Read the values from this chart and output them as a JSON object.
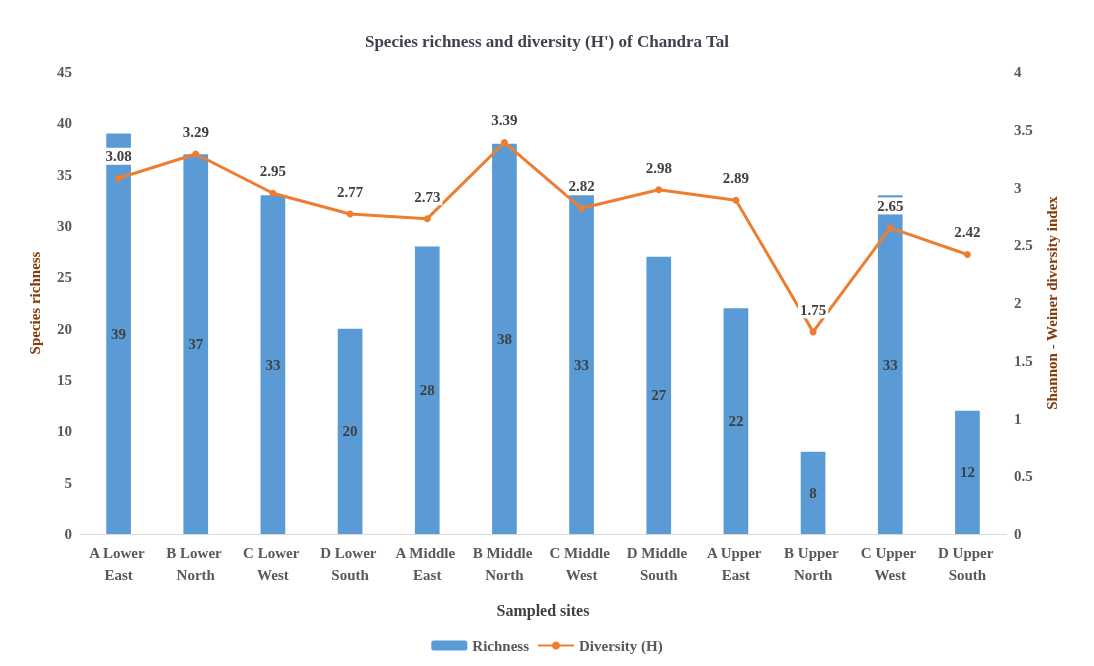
{
  "chart_data": {
    "type": "bar",
    "title": "Species richness and diversity (H') of Chandra Tal",
    "xlabel": "Sampled sites",
    "ylabel": "Species richness",
    "y2label": "Shannon - Weiner diversity index",
    "categories": [
      "A Lower East",
      "B Lower North",
      "C Lower West",
      "D Lower South",
      "A Middle East",
      "B Middle North",
      "C Middle West",
      "D Middle South",
      "A Upper East",
      "B Upper North",
      "C Upper West",
      "D Upper South"
    ],
    "series": [
      {
        "name": "Richness",
        "color": "#5b9bd5",
        "values": [
          39,
          37,
          33,
          20,
          28,
          38,
          33,
          27,
          22,
          8,
          33,
          12
        ]
      },
      {
        "name": "Diversity (H)",
        "type": "line",
        "axis": "y2",
        "color": "#ed7d31",
        "marker": "circle",
        "values": [
          3.08,
          3.29,
          2.95,
          2.77,
          2.73,
          3.39,
          2.82,
          2.98,
          2.89,
          1.75,
          2.65,
          2.42
        ]
      }
    ],
    "ylim": [
      0,
      45
    ],
    "yticks": [
      0,
      5,
      10,
      15,
      20,
      25,
      30,
      35,
      40,
      45
    ],
    "y2lim": [
      0,
      4
    ],
    "y2ticks": [
      0,
      0.5,
      1,
      1.5,
      2,
      2.5,
      3,
      3.5,
      4
    ],
    "data_labels": true,
    "legend": "bottom",
    "grid": false
  }
}
